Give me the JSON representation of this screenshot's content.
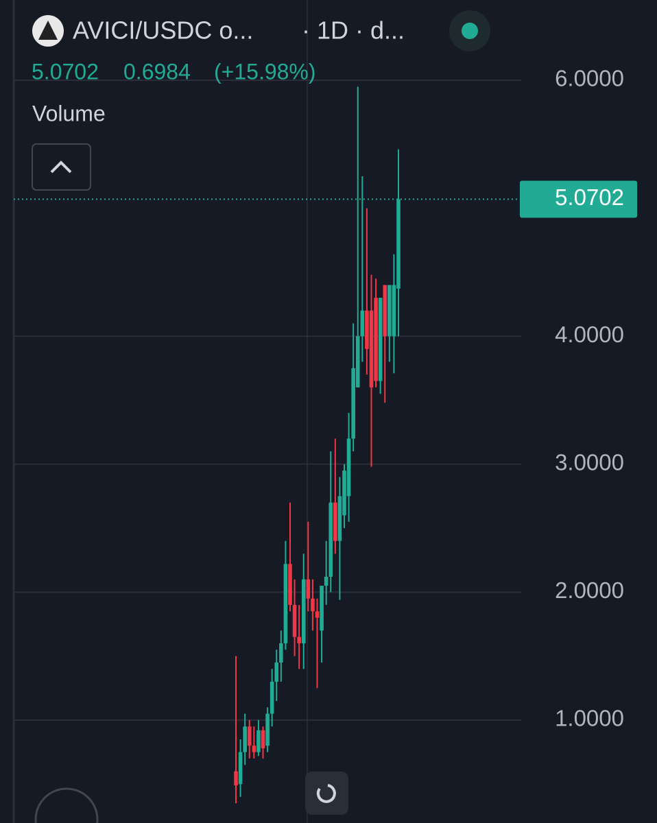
{
  "chart_data": {
    "type": "candlestick",
    "title": "AVICI/USDC o...",
    "subtitle": "· 1D · d...",
    "last": 5.0702,
    "change": 0.6984,
    "change_label": "(+15.98%)",
    "volume_label": "Volume",
    "categories": [
      null,
      null,
      null,
      null,
      null,
      null,
      null,
      null,
      null,
      null,
      null,
      null,
      null,
      null,
      null,
      null,
      null,
      null,
      null,
      null,
      null,
      null,
      null,
      null,
      null,
      null,
      null,
      null,
      null,
      null,
      null,
      null,
      null,
      null,
      null,
      null,
      null
    ],
    "open": [
      0.6,
      0.5,
      0.75,
      0.95,
      0.8,
      0.75,
      0.92,
      0.8,
      1.05,
      1.3,
      1.45,
      1.6,
      2.22,
      1.9,
      1.65,
      1.6,
      2.1,
      1.95,
      1.85,
      1.7,
      2.05,
      2.12,
      2.7,
      2.4,
      2.6,
      2.75,
      3.2,
      3.6,
      4.0,
      4.2,
      4.2,
      4.3,
      3.65,
      4.4,
      4.0,
      4.0,
      4.3718
    ],
    "high": [
      1.5,
      0.85,
      1.05,
      1.0,
      0.95,
      1.0,
      0.95,
      1.1,
      1.4,
      1.55,
      1.7,
      2.4,
      2.7,
      2.1,
      1.9,
      2.3,
      2.55,
      2.1,
      1.95,
      2.05,
      2.4,
      3.1,
      3.2,
      2.9,
      3.0,
      3.4,
      4.1,
      5.95,
      5.25,
      5.0,
      4.48,
      4.45,
      4.3,
      4.4,
      4.4,
      4.64,
      5.46
    ],
    "low": [
      0.35,
      0.4,
      0.65,
      0.7,
      0.7,
      0.72,
      0.7,
      0.75,
      0.95,
      1.15,
      1.3,
      1.55,
      1.85,
      1.5,
      1.4,
      1.4,
      1.85,
      1.7,
      1.25,
      1.45,
      1.9,
      2.0,
      2.3,
      1.94,
      2.5,
      2.55,
      3.1,
      3.6,
      3.8,
      3.7,
      2.98,
      3.6,
      3.55,
      3.48,
      3.8,
      3.71,
      4.0
    ],
    "close": [
      0.49,
      0.75,
      0.95,
      0.8,
      0.75,
      0.92,
      0.78,
      1.05,
      1.3,
      1.45,
      1.6,
      2.22,
      1.9,
      1.65,
      1.6,
      2.1,
      1.95,
      1.85,
      1.8,
      2.05,
      2.12,
      2.7,
      2.4,
      2.75,
      2.95,
      3.2,
      3.75,
      4.0,
      4.2,
      3.9,
      3.6,
      3.65,
      4.3,
      4.0,
      4.4,
      4.4,
      5.0702
    ],
    "up_color": "#22ab94",
    "down_color": "#f23645",
    "ylim": [
      0.196,
      6.627
    ],
    "yticks": [
      {
        "value": 1,
        "label": "1.0000"
      },
      {
        "value": 2,
        "label": "2.0000"
      },
      {
        "value": 3,
        "label": "3.0000"
      },
      {
        "value": 4,
        "label": "4.0000"
      },
      {
        "value": 6,
        "label": "6.0000"
      }
    ],
    "grid": true
  }
}
